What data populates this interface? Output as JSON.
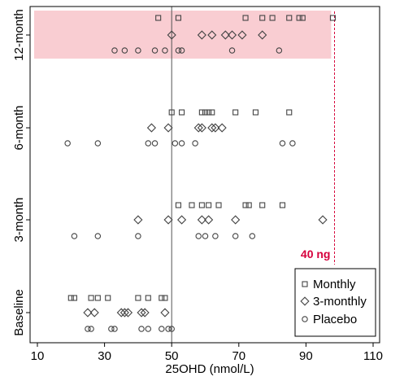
{
  "chart_data": {
    "type": "scatter",
    "xlabel": "25OHD (nmol/L)",
    "ylabel": "",
    "xlim": [
      10,
      110
    ],
    "x_ticks": [
      10,
      30,
      50,
      70,
      90,
      110
    ],
    "x_tick_labels": [
      "10",
      "30",
      "50",
      "70",
      "90",
      "110"
    ],
    "categories": [
      "Baseline",
      "3-month",
      "6-month",
      "12-month"
    ],
    "vertical_lines": [
      {
        "x": 50,
        "style": "solid",
        "color": "#555555"
      },
      {
        "x": 98.5,
        "style": "dashed",
        "color": "#d6003c",
        "label": "40 ng"
      }
    ],
    "highlight_region": {
      "category": "12-month",
      "x_range": [
        10,
        97.5
      ],
      "color": "#f9cdd2"
    },
    "colors": {
      "marker": "#444444",
      "reference": "#d6003c"
    },
    "legend": {
      "position": "bottom-right",
      "entries": [
        "Monthly",
        "3-monthly",
        "Placebo"
      ]
    },
    "series": [
      {
        "name": "Monthly",
        "marker": "square",
        "points": {
          "12-month": [
            46,
            52,
            72,
            77,
            80,
            85,
            88,
            89,
            98
          ],
          "6-month": [
            50,
            53,
            59,
            60,
            61,
            62,
            69,
            75,
            85
          ],
          "3-month": [
            52,
            56,
            59,
            61,
            64,
            72,
            73,
            77,
            83
          ],
          "Baseline": [
            20,
            21,
            26,
            28,
            31,
            40,
            43,
            47,
            48
          ]
        }
      },
      {
        "name": "3-monthly",
        "marker": "diamond",
        "points": {
          "12-month": [
            50,
            59,
            62,
            66,
            68,
            71,
            77
          ],
          "6-month": [
            44,
            49,
            58,
            59,
            62,
            63,
            65
          ],
          "3-month": [
            40,
            49,
            53,
            59,
            61,
            69,
            95
          ],
          "Baseline": [
            25,
            27,
            35,
            36,
            37,
            41,
            42,
            48
          ]
        }
      },
      {
        "name": "Placebo",
        "marker": "circle",
        "points": {
          "12-month": [
            33,
            36,
            40,
            45,
            48,
            52,
            53,
            68,
            82
          ],
          "6-month": [
            19,
            28,
            43,
            45,
            51,
            53,
            57,
            83,
            86
          ],
          "3-month": [
            21,
            28,
            40,
            58,
            60,
            63,
            69,
            74
          ],
          "Baseline": [
            25,
            26,
            32,
            33,
            41,
            43,
            47,
            49,
            50
          ]
        }
      }
    ]
  }
}
